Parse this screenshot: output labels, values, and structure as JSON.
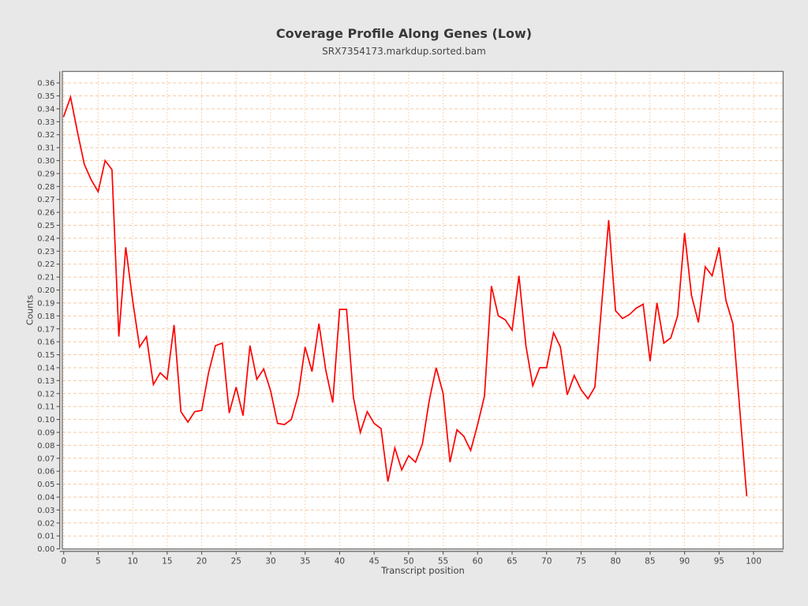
{
  "page": {
    "title": "Coverage Profile Along Genes (Low)",
    "subtitle": "SRX7354173.markdup.sorted.bam"
  },
  "chart_data": {
    "type": "line",
    "title": "Coverage Profile Along Genes (Low)",
    "subtitle": "SRX7354173.markdup.sorted.bam",
    "xlabel": "Transcript position",
    "ylabel": "Counts",
    "x": [
      0,
      1,
      2,
      3,
      4,
      5,
      6,
      7,
      8,
      9,
      10,
      11,
      12,
      13,
      14,
      15,
      16,
      17,
      18,
      19,
      20,
      21,
      22,
      23,
      24,
      25,
      26,
      27,
      28,
      29,
      30,
      31,
      32,
      33,
      34,
      35,
      36,
      37,
      38,
      39,
      40,
      41,
      42,
      43,
      44,
      45,
      46,
      47,
      48,
      49,
      50,
      51,
      52,
      53,
      54,
      55,
      56,
      57,
      58,
      59,
      60,
      61,
      62,
      63,
      64,
      65,
      66,
      67,
      68,
      69,
      70,
      71,
      72,
      73,
      74,
      75,
      76,
      77,
      78,
      79,
      80,
      81,
      82,
      83,
      84,
      85,
      86,
      87,
      88,
      89,
      90,
      91,
      92,
      93,
      94,
      95,
      96,
      97,
      98,
      99
    ],
    "values": [
      0.334,
      0.349,
      0.322,
      0.297,
      0.285,
      0.276,
      0.3,
      0.293,
      0.164,
      0.233,
      0.192,
      0.156,
      0.164,
      0.127,
      0.136,
      0.131,
      0.173,
      0.106,
      0.098,
      0.106,
      0.107,
      0.136,
      0.157,
      0.159,
      0.105,
      0.125,
      0.103,
      0.157,
      0.131,
      0.139,
      0.122,
      0.097,
      0.096,
      0.1,
      0.119,
      0.156,
      0.137,
      0.174,
      0.138,
      0.113,
      0.185,
      0.185,
      0.117,
      0.09,
      0.106,
      0.097,
      0.093,
      0.052,
      0.078,
      0.061,
      0.072,
      0.067,
      0.081,
      0.115,
      0.14,
      0.12,
      0.067,
      0.092,
      0.087,
      0.076,
      0.096,
      0.118,
      0.203,
      0.18,
      0.177,
      0.169,
      0.211,
      0.157,
      0.126,
      0.14,
      0.14,
      0.167,
      0.156,
      0.119,
      0.134,
      0.123,
      0.116,
      0.125,
      0.19,
      0.254,
      0.184,
      0.178,
      0.181,
      0.186,
      0.189,
      0.145,
      0.19,
      0.159,
      0.163,
      0.18,
      0.244,
      0.196,
      0.175,
      0.218,
      0.211,
      0.233,
      0.192,
      0.174,
      0.108,
      0.041
    ],
    "ylim": [
      0.0,
      0.36
    ],
    "ytick_step": 0.01,
    "xticks": [
      0,
      5,
      10,
      15,
      20,
      25,
      30,
      35,
      40,
      45,
      50,
      55,
      60,
      65,
      70,
      75,
      80,
      85,
      90,
      95,
      100
    ],
    "grid": true,
    "legend": false,
    "colors": {
      "line": "#fe0000",
      "grid": "#f5c9a2",
      "plot_background": "#ffffff",
      "page_background": "#e8e8e8",
      "frame": "#707070",
      "axis": "#555555",
      "tick_label": "#444444",
      "title": "#383838"
    }
  }
}
